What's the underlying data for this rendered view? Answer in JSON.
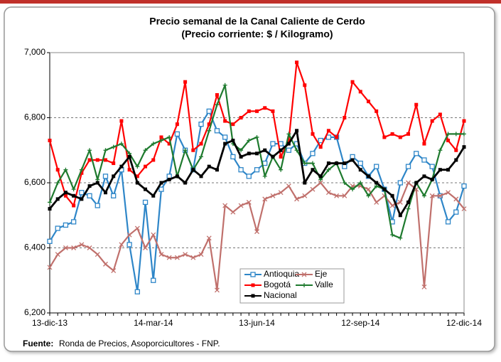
{
  "chart_data": {
    "type": "line",
    "title": "Precio semanal de la Canal Caliente de Cerdo",
    "subtitle": "(Precio corriente: $ / Kilogramo)",
    "source_label": "Fuente:",
    "source": "Ronda de Precios, Asoporcicultores - FNP.",
    "categories": [
      "13-dic-13",
      null,
      null,
      null,
      null,
      null,
      null,
      null,
      null,
      null,
      null,
      null,
      null,
      "14-mar-14",
      null,
      null,
      null,
      null,
      null,
      null,
      null,
      null,
      null,
      null,
      null,
      null,
      "13-jun-14",
      null,
      null,
      null,
      null,
      null,
      null,
      null,
      null,
      null,
      null,
      null,
      null,
      "12-sep-14",
      null,
      null,
      null,
      null,
      null,
      null,
      null,
      null,
      null,
      null,
      null,
      null,
      "12-dic-14"
    ],
    "ylim": [
      6200,
      7000
    ],
    "yticks": [
      {
        "value": 6200,
        "label": "6,200"
      },
      {
        "value": 6400,
        "label": "6,400"
      },
      {
        "value": 6600,
        "label": "6,600"
      },
      {
        "value": 6800,
        "label": "6,800"
      },
      {
        "value": 7000,
        "label": "7,000"
      }
    ],
    "grid": true,
    "series": [
      {
        "name": "Antioquia",
        "color": "#2e86c8",
        "marker": "square-open",
        "values": [
          6420,
          6460,
          6470,
          6480,
          6570,
          6560,
          6530,
          6620,
          6560,
          6640,
          6410,
          6265,
          6540,
          6300,
          6580,
          6620,
          6750,
          6700,
          6640,
          6780,
          6820,
          6760,
          6740,
          6680,
          6640,
          6620,
          6640,
          6660,
          6720,
          6720,
          6700,
          6720,
          6660,
          6690,
          6730,
          6740,
          6740,
          6650,
          6680,
          6660,
          6620,
          6650,
          6580,
          6480,
          6600,
          6650,
          6690,
          6670,
          6650,
          6560,
          6480,
          6510,
          6590
        ]
      },
      {
        "name": "Eje",
        "color": "#c0706c",
        "marker": "x",
        "values": [
          6340,
          6380,
          6400,
          6400,
          6410,
          6400,
          6380,
          6350,
          6330,
          6410,
          6440,
          6460,
          6400,
          6440,
          6380,
          6370,
          6370,
          6380,
          6370,
          6380,
          6430,
          6270,
          6530,
          6510,
          6530,
          6540,
          6450,
          6550,
          6560,
          6570,
          6590,
          6550,
          6560,
          6580,
          6600,
          6570,
          6560,
          6560,
          6590,
          6590,
          6580,
          6540,
          6560,
          6530,
          6540,
          6600,
          6580,
          6280,
          6560,
          6560,
          6570,
          6550,
          6520
        ]
      },
      {
        "name": "Bogotá",
        "color": "#ff0000",
        "marker": "square",
        "values": [
          6730,
          6640,
          6560,
          6530,
          6630,
          6670,
          6670,
          6670,
          6660,
          6790,
          6640,
          6620,
          6650,
          6670,
          6740,
          6720,
          6780,
          6910,
          6700,
          6720,
          6780,
          6870,
          6790,
          6780,
          6800,
          6820,
          6820,
          6830,
          6820,
          6680,
          6730,
          6970,
          6900,
          6750,
          6710,
          6760,
          6740,
          6800,
          6910,
          6880,
          6850,
          6820,
          6740,
          6750,
          6740,
          6750,
          6840,
          6720,
          6790,
          6810,
          6730,
          6700,
          6790
        ]
      },
      {
        "name": "Valle",
        "color": "#1e7a2e",
        "marker": "plus",
        "values": [
          6540,
          6600,
          6640,
          6580,
          6640,
          6700,
          6610,
          6700,
          6710,
          6720,
          6690,
          6650,
          6700,
          6720,
          6730,
          6740,
          6620,
          6700,
          6640,
          6680,
          6760,
          6840,
          6900,
          6720,
          6700,
          6730,
          6740,
          6620,
          6680,
          6640,
          6750,
          6700,
          6660,
          6660,
          6610,
          6640,
          6660,
          6600,
          6580,
          6600,
          6560,
          6590,
          6580,
          6440,
          6430,
          6520,
          6600,
          6560,
          6610,
          6700,
          6750,
          6750,
          6750
        ]
      },
      {
        "name": "Nacional",
        "color": "#000000",
        "marker": "square",
        "values": [
          6520,
          6550,
          6570,
          6560,
          6550,
          6590,
          6600,
          6570,
          6620,
          6650,
          6680,
          6600,
          6580,
          6560,
          6600,
          6610,
          6620,
          6600,
          6640,
          6620,
          6650,
          6640,
          6720,
          6730,
          6680,
          6690,
          6690,
          6700,
          6680,
          6700,
          6720,
          6760,
          6600,
          6640,
          6620,
          6660,
          6660,
          6660,
          6670,
          6640,
          6620,
          6600,
          6580,
          6560,
          6500,
          6540,
          6600,
          6620,
          6610,
          6640,
          6640,
          6670,
          6710
        ]
      }
    ]
  }
}
